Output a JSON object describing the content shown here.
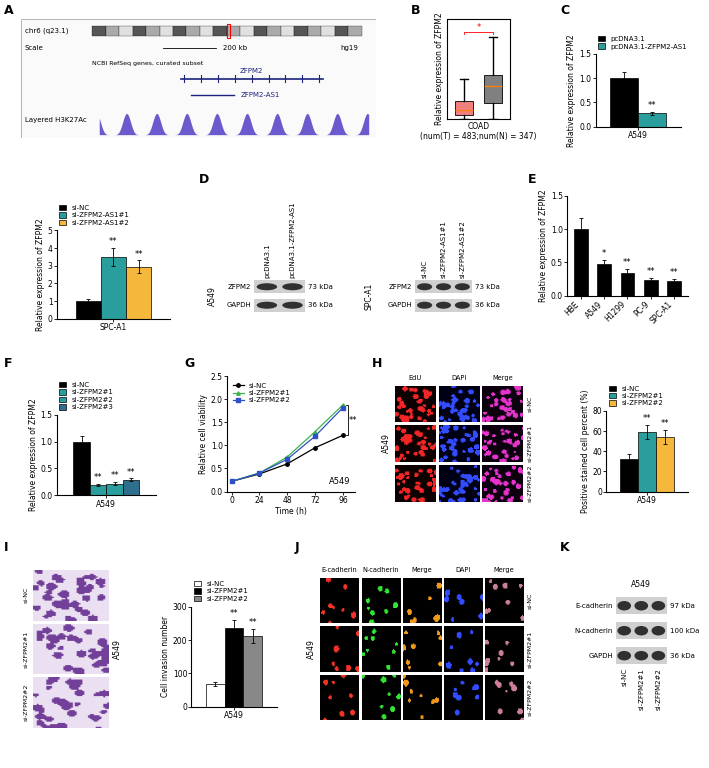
{
  "genome_browser": {
    "label": "A",
    "texts": [
      "chr6 (q23.1)",
      "Scale",
      "200 kb",
      "hg19",
      "NCBI RefSeq genes, curated subset",
      "ZFPM2",
      "ZFPM2-AS1",
      "Layered H3K27Ac"
    ]
  },
  "chart_data": [
    {
      "type": "box",
      "label": "B",
      "ylabel": "Relative expression of ZFPM2",
      "xlabel": "COAD\n(num(T) = 483;num(N) = 347)",
      "boxes": [
        {
          "color": "#f08080",
          "whislo": 0.0,
          "q1": 0.2,
          "median": 0.5,
          "q3": 1.0,
          "whishi": 2.2
        },
        {
          "color": "#808080",
          "whislo": 0.0,
          "q1": 0.9,
          "median": 1.8,
          "q3": 2.4,
          "whishi": 4.5
        }
      ],
      "significance": "*",
      "ylim": [
        0,
        5.5
      ],
      "yticks": [],
      "tick_labels": false
    },
    {
      "type": "bar",
      "label": "C",
      "ylabel": "Relative expression of ZFPM2",
      "categories": [
        "A549"
      ],
      "series": [
        {
          "name": "pcDNA3.1",
          "color": "#000000",
          "values": [
            1.0
          ],
          "errors": [
            0.12
          ],
          "annotations": [
            null
          ]
        },
        {
          "name": "pcDNA3.1-ZFPM2-AS1",
          "color": "#2a9d9d",
          "values": [
            0.28
          ],
          "errors": [
            0.03
          ],
          "annotations": [
            "**"
          ]
        }
      ],
      "ylim": [
        0,
        1.5
      ],
      "yticks": [
        {
          "value": 0,
          "label": "0.0"
        },
        0.5,
        {
          "value": 1,
          "label": "1.0"
        },
        1.5
      ]
    },
    {
      "type": "bar",
      "ylabel": "Relative expression of ZFPM2",
      "categories": [
        "SPC-A1"
      ],
      "series": [
        {
          "name": "si-NC",
          "color": "#000000",
          "values": [
            1.0
          ],
          "errors": [
            0.1
          ],
          "annotations": [
            null
          ]
        },
        {
          "name": "si-ZFPM2-AS1#1",
          "color": "#2a9d9d",
          "values": [
            3.5
          ],
          "errors": [
            0.5
          ],
          "annotations": [
            "**"
          ]
        },
        {
          "name": "si-ZFPM2-AS1#2",
          "color": "#f5b83d",
          "values": [
            2.95
          ],
          "errors": [
            0.35
          ],
          "annotations": [
            "**"
          ]
        }
      ],
      "ylim": [
        0,
        5
      ],
      "yticks": [
        0,
        1,
        2,
        3,
        4,
        5
      ]
    },
    {
      "type": "bar",
      "label": "E",
      "ylabel": "Relative expression of ZFPM2",
      "categories": [
        "HBE",
        "A549",
        "H1299",
        "PC-9",
        "SPC-A1"
      ],
      "values": [
        1.0,
        0.48,
        0.34,
        0.23,
        0.22
      ],
      "errors": [
        0.17,
        0.05,
        0.06,
        0.03,
        0.03
      ],
      "annotations": [
        null,
        "*",
        "**",
        "**",
        "**"
      ],
      "color": "#000000",
      "ylim": [
        0,
        1.5
      ],
      "yticks": [
        {
          "value": 0,
          "label": "0.0"
        },
        0.5,
        {
          "value": 1,
          "label": "1.0"
        },
        1.5
      ]
    },
    {
      "type": "bar",
      "label": "F",
      "ylabel": "Relative expression of ZFPM2",
      "categories": [
        "A549"
      ],
      "series": [
        {
          "name": "si-NC",
          "color": "#000000",
          "values": [
            1.0
          ],
          "errors": [
            0.1
          ],
          "annotations": [
            null
          ]
        },
        {
          "name": "si-ZFPM2#1",
          "color": "#2a9d9d",
          "values": [
            0.2
          ],
          "errors": [
            0.02
          ],
          "annotations": [
            "**"
          ]
        },
        {
          "name": "si-ZFPM2#2",
          "color": "#2a9d9d",
          "values": [
            0.22
          ],
          "errors": [
            0.03
          ],
          "annotations": [
            "**"
          ]
        },
        {
          "name": "si-ZFPM2#3",
          "color": "#2e6f8e",
          "values": [
            0.29
          ],
          "errors": [
            0.03
          ],
          "annotations": [
            "**"
          ]
        }
      ],
      "ylim": [
        0,
        1.5
      ],
      "yticks": [
        {
          "value": 0,
          "label": "0.0"
        },
        0.5,
        {
          "value": 1,
          "label": "1.0"
        },
        1.5
      ]
    },
    {
      "type": "line",
      "label": "G",
      "ylabel": "Relative cell viability",
      "xlabel": "Time (h)",
      "cell": "A549",
      "x": [
        0,
        24,
        48,
        72,
        96
      ],
      "series": [
        {
          "name": "si-NC",
          "color": "#000000",
          "marker": "circle",
          "values": [
            0.22,
            0.38,
            0.6,
            0.95,
            1.22
          ]
        },
        {
          "name": "si-ZFPM2#1",
          "color": "#3cb44b",
          "marker": "triangle",
          "values": [
            0.22,
            0.4,
            0.75,
            1.3,
            1.88
          ]
        },
        {
          "name": "si-ZFPM2#2",
          "color": "#3050c8",
          "marker": "square",
          "values": [
            0.22,
            0.4,
            0.7,
            1.2,
            1.82
          ]
        }
      ],
      "significance": "**",
      "xlim": [
        -4,
        106
      ],
      "xticks": [
        0,
        24,
        48,
        72,
        96
      ],
      "ylim": [
        0,
        2.5
      ],
      "yticks": [
        {
          "value": 0,
          "label": "0.0"
        },
        0.5,
        {
          "value": 1,
          "label": "1.0"
        },
        1.5,
        {
          "value": 2,
          "label": "2.0"
        },
        2.5
      ]
    },
    {
      "type": "bar",
      "ylabel": "Positive stained cell percent (%)",
      "categories": [
        "A549"
      ],
      "series": [
        {
          "name": "si-NC",
          "color": "#000000",
          "values": [
            32
          ],
          "errors": [
            5
          ],
          "annotations": [
            null
          ]
        },
        {
          "name": "si-ZFPM2#1",
          "color": "#2a9d9d",
          "values": [
            59
          ],
          "errors": [
            7
          ],
          "annotations": [
            "**"
          ]
        },
        {
          "name": "si-ZFPM2#2",
          "color": "#f5b83d",
          "values": [
            54
          ],
          "errors": [
            7
          ],
          "annotations": [
            "**"
          ]
        }
      ],
      "ylim": [
        0,
        80
      ],
      "yticks": [
        0,
        20,
        40,
        60,
        80
      ]
    },
    {
      "type": "bar",
      "ylabel": "Cell invasion number",
      "categories": [
        "A549"
      ],
      "series": [
        {
          "name": "si-NC",
          "color": "#ffffff",
          "values": [
            68
          ],
          "errors": [
            6
          ],
          "annotations": [
            null
          ]
        },
        {
          "name": "si-ZFPM2#1",
          "color": "#000000",
          "values": [
            235
          ],
          "errors": [
            25
          ],
          "annotations": [
            "**"
          ]
        },
        {
          "name": "si-ZFPM2#2",
          "color": "#888888",
          "values": [
            212
          ],
          "errors": [
            22
          ],
          "annotations": [
            "**"
          ]
        }
      ],
      "ylim": [
        0,
        300
      ],
      "yticks": [
        0,
        100,
        200,
        300
      ]
    }
  ],
  "blots": [
    {
      "label": "D",
      "cell": "A549",
      "lanes": [
        "pcDNA3.1",
        "pcDNA3.1-ZFPM2-AS1"
      ],
      "bands": [
        {
          "name": "ZFPM2",
          "size": "73 kDa"
        },
        {
          "name": "GAPDH",
          "size": "36 kDa"
        }
      ]
    },
    {
      "cell": "SPC-A1",
      "lanes": [
        "si-NC",
        "si-ZFPM2-AS1#1",
        "si-ZFPM2-AS1#2"
      ],
      "bands": [
        {
          "name": "ZFPM2",
          "size": "73 kDa"
        },
        {
          "name": "GAPDH",
          "size": "36 kDa"
        }
      ]
    },
    {
      "label": "K",
      "cell": "A549",
      "lanes": [
        "si-NC",
        "si-ZFPM2#1",
        "si-ZFPM2#2"
      ],
      "bands": [
        {
          "name": "E-cadherin",
          "size": "97 kDa"
        },
        {
          "name": "N-cadherin",
          "size": "100 kDa"
        },
        {
          "name": "GAPDH",
          "size": "36 kDa"
        }
      ]
    }
  ],
  "image_grids": [
    {
      "label": "H",
      "cell": "A549",
      "columns": [
        "EdU",
        "DAPI",
        "Merge"
      ],
      "rows": [
        "si-NC",
        "si-ZFPM2#1",
        "si-ZFPM2#2"
      ]
    },
    {
      "label": "I",
      "cell": "A549",
      "columns": [],
      "rows": [
        "si-NC",
        "si-ZFPM2#1",
        "si-ZFPM2#2"
      ]
    },
    {
      "label": "J",
      "cell": "A549",
      "columns": [
        "E-cadherin",
        "N-cadherin",
        "Merge",
        "DAPI",
        "Merge"
      ],
      "rows": [
        "si-NC",
        "si-ZFPM2#1",
        "si-ZFPM2#2"
      ]
    }
  ]
}
